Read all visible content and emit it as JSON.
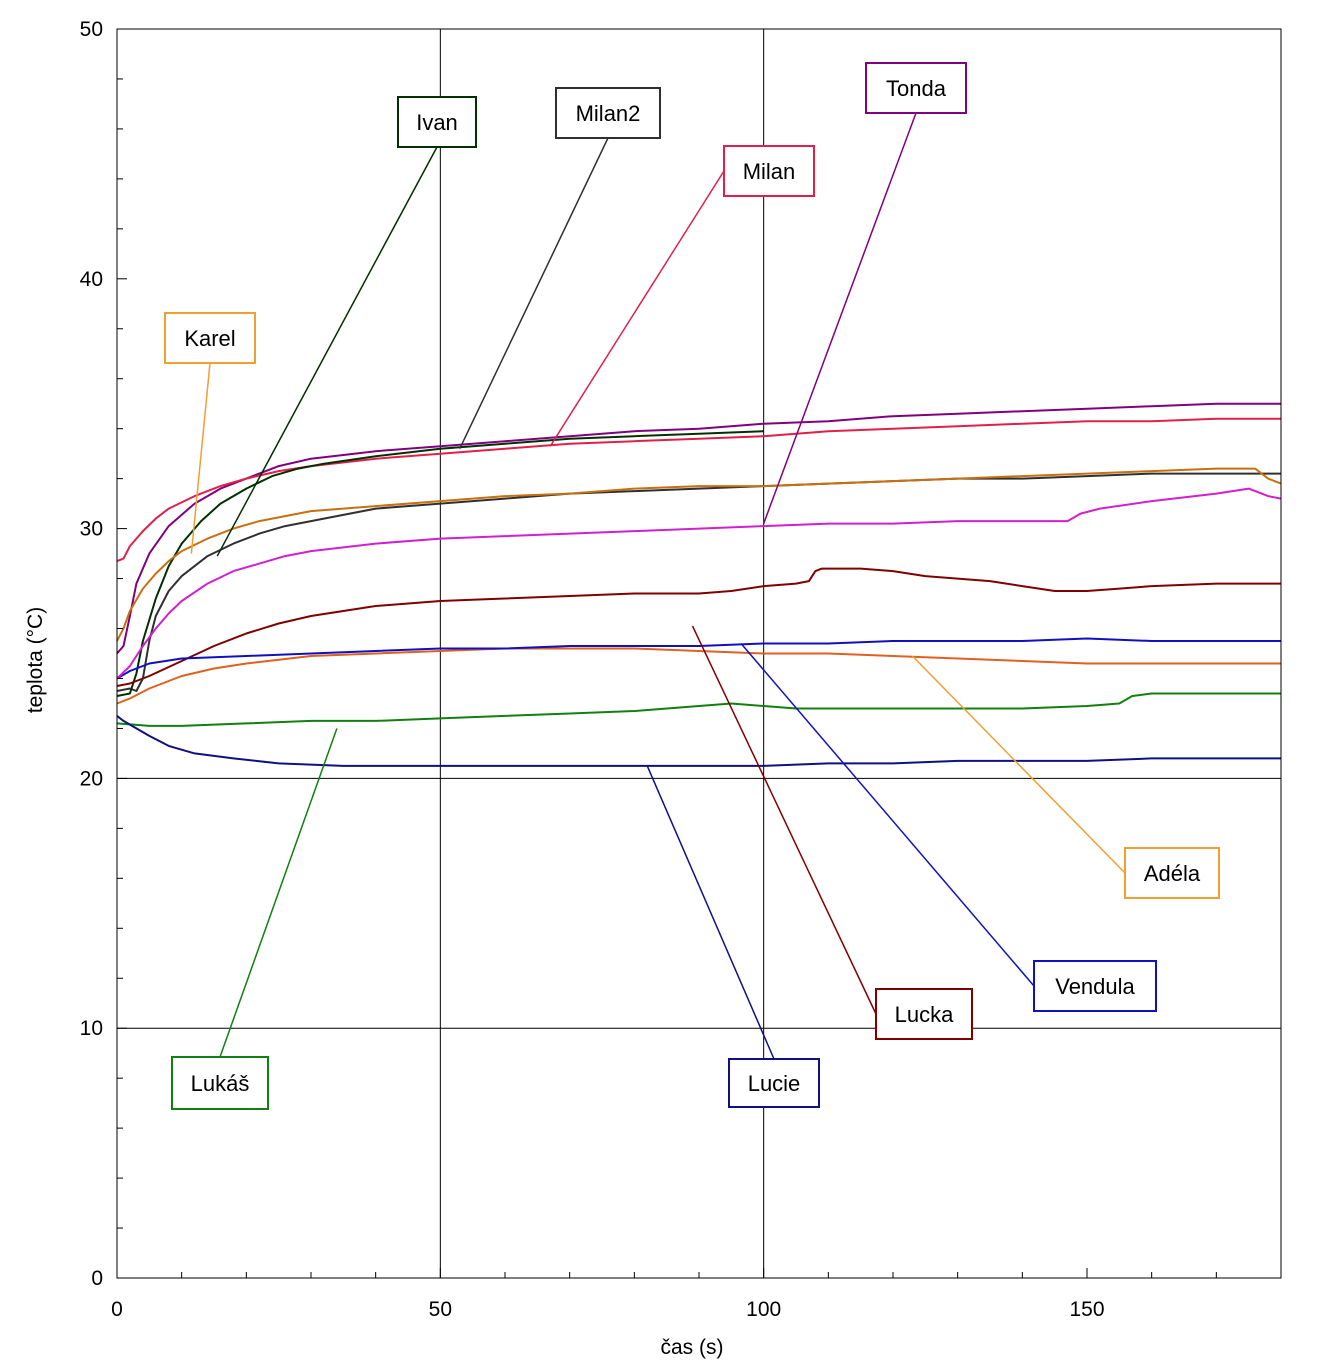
{
  "chart_data": {
    "type": "line",
    "title": "",
    "xlabel": "čas (s)",
    "ylabel": "teplota (°C)",
    "xlim": [
      0,
      180
    ],
    "ylim": [
      0,
      50
    ],
    "x_ticks": [
      0,
      50,
      100,
      150
    ],
    "y_ticks": [
      0,
      10,
      20,
      30,
      40,
      50
    ],
    "grid": "lines at x = 50, 100 and y = 10, 20",
    "series": [
      {
        "name": "Tonda",
        "color": "#800080",
        "points": [
          [
            0,
            25
          ],
          [
            1,
            25.3
          ],
          [
            2,
            26.5
          ],
          [
            3,
            27.8
          ],
          [
            5,
            29
          ],
          [
            8,
            30.1
          ],
          [
            12,
            31
          ],
          [
            16,
            31.6
          ],
          [
            20,
            32
          ],
          [
            25,
            32.5
          ],
          [
            30,
            32.8
          ],
          [
            40,
            33.1
          ],
          [
            50,
            33.3
          ],
          [
            60,
            33.5
          ],
          [
            70,
            33.7
          ],
          [
            80,
            33.9
          ],
          [
            90,
            34
          ],
          [
            100,
            34.2
          ],
          [
            110,
            34.3
          ],
          [
            120,
            34.5
          ],
          [
            130,
            34.6
          ],
          [
            140,
            34.7
          ],
          [
            150,
            34.8
          ],
          [
            160,
            34.9
          ],
          [
            170,
            35
          ],
          [
            180,
            35
          ]
        ]
      },
      {
        "name": "Milan",
        "color": "#e0204a",
        "points": [
          [
            0,
            28.7
          ],
          [
            1,
            28.8
          ],
          [
            2,
            29.3
          ],
          [
            4,
            29.9
          ],
          [
            6,
            30.4
          ],
          [
            8,
            30.8
          ],
          [
            12,
            31.3
          ],
          [
            16,
            31.7
          ],
          [
            20,
            32
          ],
          [
            25,
            32.3
          ],
          [
            30,
            32.5
          ],
          [
            40,
            32.8
          ],
          [
            50,
            33
          ],
          [
            60,
            33.2
          ],
          [
            70,
            33.4
          ],
          [
            80,
            33.5
          ],
          [
            90,
            33.6
          ],
          [
            100,
            33.7
          ],
          [
            110,
            33.9
          ],
          [
            120,
            34
          ],
          [
            130,
            34.1
          ],
          [
            140,
            34.2
          ],
          [
            150,
            34.3
          ],
          [
            160,
            34.3
          ],
          [
            170,
            34.4
          ],
          [
            180,
            34.4
          ]
        ]
      },
      {
        "name": "Milan2",
        "color": "#303030",
        "points": [
          [
            0,
            23.5
          ],
          [
            2,
            23.6
          ],
          [
            3,
            23.5
          ],
          [
            4,
            24
          ],
          [
            5,
            25.5
          ],
          [
            6,
            26.5
          ],
          [
            8,
            27.5
          ],
          [
            10,
            28.1
          ],
          [
            14,
            28.9
          ],
          [
            18,
            29.4
          ],
          [
            22,
            29.8
          ],
          [
            26,
            30.1
          ],
          [
            30,
            30.3
          ],
          [
            40,
            30.8
          ],
          [
            50,
            31
          ],
          [
            60,
            31.2
          ],
          [
            70,
            31.4
          ],
          [
            80,
            31.5
          ],
          [
            90,
            31.6
          ],
          [
            100,
            31.7
          ],
          [
            110,
            31.8
          ],
          [
            120,
            31.9
          ],
          [
            130,
            32
          ],
          [
            140,
            32
          ],
          [
            150,
            32.1
          ],
          [
            160,
            32.2
          ],
          [
            170,
            32.2
          ],
          [
            180,
            32.2
          ]
        ]
      },
      {
        "name": "Ivan",
        "color": "#003000",
        "points": [
          [
            0,
            23.3
          ],
          [
            2,
            23.4
          ],
          [
            3,
            24.2
          ],
          [
            4,
            25.5
          ],
          [
            6,
            27.2
          ],
          [
            8,
            28.5
          ],
          [
            10,
            29.4
          ],
          [
            13,
            30.3
          ],
          [
            16,
            31
          ],
          [
            20,
            31.6
          ],
          [
            24,
            32.1
          ],
          [
            28,
            32.4
          ],
          [
            32,
            32.6
          ],
          [
            40,
            32.9
          ],
          [
            50,
            33.2
          ],
          [
            60,
            33.4
          ],
          [
            70,
            33.6
          ],
          [
            80,
            33.7
          ],
          [
            90,
            33.8
          ],
          [
            100,
            33.9
          ]
        ]
      },
      {
        "name": "Karel",
        "color": "#c87010",
        "points": [
          [
            0,
            25.5
          ],
          [
            1,
            26
          ],
          [
            2,
            26.7
          ],
          [
            4,
            27.6
          ],
          [
            6,
            28.2
          ],
          [
            8,
            28.7
          ],
          [
            10,
            29.1
          ],
          [
            14,
            29.6
          ],
          [
            18,
            30
          ],
          [
            22,
            30.3
          ],
          [
            26,
            30.5
          ],
          [
            30,
            30.7
          ],
          [
            40,
            30.9
          ],
          [
            50,
            31.1
          ],
          [
            60,
            31.3
          ],
          [
            70,
            31.4
          ],
          [
            80,
            31.6
          ],
          [
            90,
            31.7
          ],
          [
            100,
            31.7
          ],
          [
            110,
            31.8
          ],
          [
            120,
            31.9
          ],
          [
            130,
            32
          ],
          [
            140,
            32.1
          ],
          [
            150,
            32.2
          ],
          [
            160,
            32.3
          ],
          [
            170,
            32.4
          ],
          [
            176,
            32.4
          ],
          [
            178,
            32
          ],
          [
            180,
            31.8
          ]
        ]
      },
      {
        "name": "Lucka",
        "color": "#800000",
        "points": [
          [
            0,
            23.7
          ],
          [
            2,
            23.8
          ],
          [
            5,
            24.1
          ],
          [
            10,
            24.7
          ],
          [
            15,
            25.3
          ],
          [
            20,
            25.8
          ],
          [
            25,
            26.2
          ],
          [
            30,
            26.5
          ],
          [
            35,
            26.7
          ],
          [
            40,
            26.9
          ],
          [
            50,
            27.1
          ],
          [
            60,
            27.2
          ],
          [
            70,
            27.3
          ],
          [
            80,
            27.4
          ],
          [
            90,
            27.4
          ],
          [
            95,
            27.5
          ],
          [
            100,
            27.7
          ],
          [
            105,
            27.8
          ],
          [
            107,
            27.9
          ],
          [
            108,
            28.3
          ],
          [
            109,
            28.4
          ],
          [
            115,
            28.4
          ],
          [
            120,
            28.3
          ],
          [
            125,
            28.1
          ],
          [
            130,
            28
          ],
          [
            135,
            27.9
          ],
          [
            140,
            27.7
          ],
          [
            145,
            27.5
          ],
          [
            150,
            27.5
          ],
          [
            155,
            27.6
          ],
          [
            160,
            27.7
          ],
          [
            170,
            27.8
          ],
          [
            180,
            27.8
          ]
        ]
      },
      {
        "name": "Adéla",
        "color": "#e06020",
        "points": [
          [
            0,
            23
          ],
          [
            2,
            23.2
          ],
          [
            5,
            23.6
          ],
          [
            10,
            24.1
          ],
          [
            15,
            24.4
          ],
          [
            20,
            24.6
          ],
          [
            30,
            24.9
          ],
          [
            40,
            25
          ],
          [
            50,
            25.1
          ],
          [
            60,
            25.2
          ],
          [
            70,
            25.2
          ],
          [
            80,
            25.2
          ],
          [
            90,
            25.1
          ],
          [
            100,
            25
          ],
          [
            110,
            25
          ],
          [
            120,
            24.9
          ],
          [
            130,
            24.8
          ],
          [
            140,
            24.7
          ],
          [
            150,
            24.6
          ],
          [
            160,
            24.6
          ],
          [
            170,
            24.6
          ],
          [
            180,
            24.6
          ]
        ]
      },
      {
        "name": "Vendula",
        "color": "#1010c0",
        "points": [
          [
            0,
            24
          ],
          [
            2,
            24.3
          ],
          [
            5,
            24.6
          ],
          [
            10,
            24.8
          ],
          [
            20,
            24.9
          ],
          [
            30,
            25
          ],
          [
            40,
            25.1
          ],
          [
            50,
            25.2
          ],
          [
            60,
            25.2
          ],
          [
            70,
            25.3
          ],
          [
            80,
            25.3
          ],
          [
            90,
            25.3
          ],
          [
            100,
            25.4
          ],
          [
            110,
            25.4
          ],
          [
            120,
            25.5
          ],
          [
            130,
            25.5
          ],
          [
            140,
            25.5
          ],
          [
            150,
            25.6
          ],
          [
            160,
            25.5
          ],
          [
            170,
            25.5
          ],
          [
            180,
            25.5
          ]
        ]
      },
      {
        "name": "Lukáš",
        "color": "#108010",
        "points": [
          [
            0,
            22.2
          ],
          [
            5,
            22.1
          ],
          [
            10,
            22.1
          ],
          [
            20,
            22.2
          ],
          [
            30,
            22.3
          ],
          [
            40,
            22.3
          ],
          [
            50,
            22.4
          ],
          [
            60,
            22.5
          ],
          [
            70,
            22.6
          ],
          [
            80,
            22.7
          ],
          [
            90,
            22.9
          ],
          [
            95,
            23
          ],
          [
            100,
            22.9
          ],
          [
            105,
            22.8
          ],
          [
            110,
            22.8
          ],
          [
            120,
            22.8
          ],
          [
            130,
            22.8
          ],
          [
            140,
            22.8
          ],
          [
            150,
            22.9
          ],
          [
            155,
            23
          ],
          [
            157,
            23.3
          ],
          [
            160,
            23.4
          ],
          [
            170,
            23.4
          ],
          [
            180,
            23.4
          ]
        ]
      },
      {
        "name": "Lucie",
        "color": "#101080",
        "points": [
          [
            0,
            22.5
          ],
          [
            1,
            22.3
          ],
          [
            3,
            22
          ],
          [
            5,
            21.7
          ],
          [
            8,
            21.3
          ],
          [
            12,
            21
          ],
          [
            18,
            20.8
          ],
          [
            25,
            20.6
          ],
          [
            35,
            20.5
          ],
          [
            50,
            20.5
          ],
          [
            60,
            20.5
          ],
          [
            70,
            20.5
          ],
          [
            80,
            20.5
          ],
          [
            90,
            20.5
          ],
          [
            100,
            20.5
          ],
          [
            110,
            20.6
          ],
          [
            120,
            20.6
          ],
          [
            130,
            20.7
          ],
          [
            140,
            20.7
          ],
          [
            150,
            20.7
          ],
          [
            160,
            20.8
          ],
          [
            170,
            20.8
          ],
          [
            180,
            20.8
          ]
        ]
      },
      {
        "name": "",
        "color": "#d020d0",
        "points": [
          [
            0,
            24
          ],
          [
            2,
            24.5
          ],
          [
            4,
            25.3
          ],
          [
            6,
            26
          ],
          [
            8,
            26.6
          ],
          [
            10,
            27.1
          ],
          [
            14,
            27.8
          ],
          [
            18,
            28.3
          ],
          [
            22,
            28.6
          ],
          [
            26,
            28.9
          ],
          [
            30,
            29.1
          ],
          [
            40,
            29.4
          ],
          [
            50,
            29.6
          ],
          [
            60,
            29.7
          ],
          [
            70,
            29.8
          ],
          [
            80,
            29.9
          ],
          [
            90,
            30
          ],
          [
            100,
            30.1
          ],
          [
            110,
            30.2
          ],
          [
            120,
            30.2
          ],
          [
            130,
            30.3
          ],
          [
            140,
            30.3
          ],
          [
            147,
            30.3
          ],
          [
            149,
            30.6
          ],
          [
            152,
            30.8
          ],
          [
            160,
            31.1
          ],
          [
            170,
            31.4
          ],
          [
            175,
            31.6
          ],
          [
            178,
            31.3
          ],
          [
            180,
            31.2
          ]
        ]
      }
    ],
    "annotations": [
      {
        "text": "Ivan",
        "color": "#003000",
        "point": [
          15.5,
          28.9
        ]
      },
      {
        "text": "Milan2",
        "color": "#303030",
        "point": [
          53,
          33.2
        ]
      },
      {
        "text": "Milan",
        "color": "#e0204a",
        "point": [
          67,
          33.3
        ]
      },
      {
        "text": "Tonda",
        "color": "#800080",
        "point": [
          100,
          30.2
        ]
      },
      {
        "text": "Karel",
        "color": "#f0a030",
        "point": [
          11.5,
          29
        ]
      },
      {
        "text": "Adéla",
        "color": "#f0a030",
        "point": [
          123,
          24.9
        ]
      },
      {
        "text": "Vendula",
        "color": "#1010c0",
        "point": [
          96.5,
          25.4
        ]
      },
      {
        "text": "Lucka",
        "color": "#800000",
        "point": [
          89,
          26.1
        ]
      },
      {
        "text": "Lukáš",
        "color": "#108010",
        "point": [
          34,
          22
        ]
      },
      {
        "text": "Lucie",
        "color": "#101080",
        "point": [
          82,
          20.5
        ]
      }
    ]
  }
}
